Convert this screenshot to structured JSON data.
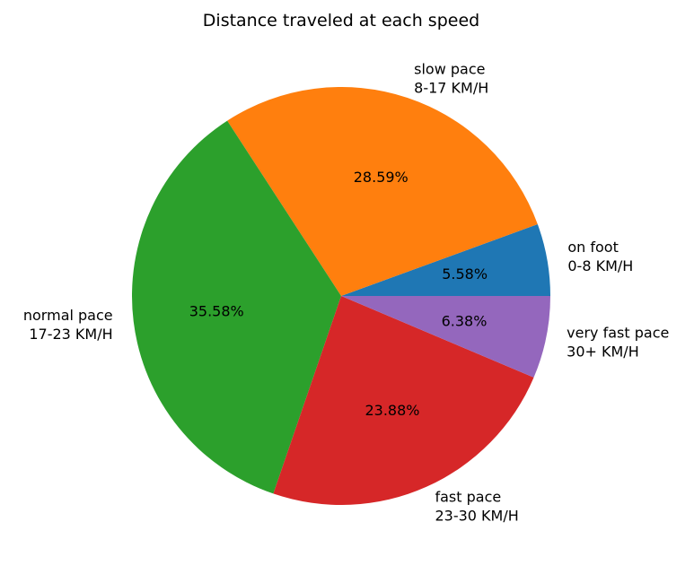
{
  "chart_data": {
    "type": "pie",
    "title": "Distance traveled at each speed",
    "start_angle_deg": 0,
    "direction": "counterclockwise",
    "slices": [
      {
        "label_line1": "on foot",
        "label_line2": "0-8 KM/H",
        "value": 5.58,
        "pct_label": "5.58%",
        "color": "#1f77b4"
      },
      {
        "label_line1": "slow pace",
        "label_line2": "8-17 KM/H",
        "value": 28.59,
        "pct_label": "28.59%",
        "color": "#ff7f0e"
      },
      {
        "label_line1": "normal pace",
        "label_line2": "17-23 KM/H",
        "value": 35.58,
        "pct_label": "35.58%",
        "color": "#2ca02c"
      },
      {
        "label_line1": "fast pace",
        "label_line2": "23-30 KM/H",
        "value": 23.88,
        "pct_label": "23.88%",
        "color": "#d62728"
      },
      {
        "label_line1": "very fast pace",
        "label_line2": "30+ KM/H",
        "value": 6.38,
        "pct_label": "6.38%",
        "color": "#9467bd"
      }
    ]
  }
}
